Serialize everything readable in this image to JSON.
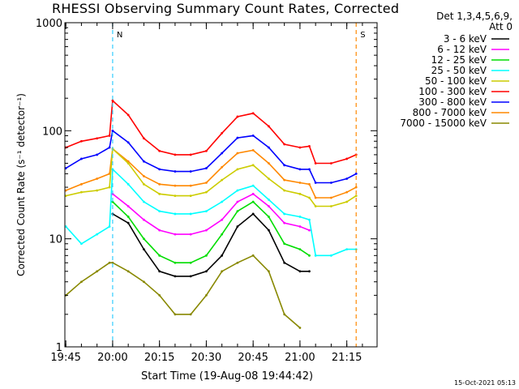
{
  "chart_data": {
    "type": "line",
    "title": "RHESSI Observing Summary Count Rates, Corrected",
    "xlabel": "Start Time (19-Aug-08 19:44:42)",
    "ylabel": "Corrected Count Rate (s⁻¹ detector⁻¹)",
    "yscale": "log",
    "ylim": [
      1,
      1000
    ],
    "xlim_minutes": [
      0,
      100
    ],
    "x_ticks": [
      "19:45",
      "20:00",
      "20:15",
      "20:30",
      "20:45",
      "21:00",
      "21:15"
    ],
    "y_ticks": [
      "1",
      "10",
      "100",
      "1000"
    ],
    "legend_header": [
      "Det 1,3,4,5,6,9,",
      "Att 0"
    ],
    "legend_position": "right",
    "markers": [
      {
        "label": "N",
        "time": "20:00",
        "color": "#33ccff"
      },
      {
        "label": "S",
        "time": "21:18",
        "color": "#ff8800"
      }
    ],
    "x": [
      "19:45",
      "19:50",
      "19:55",
      "19:59",
      "20:00",
      "20:05",
      "20:10",
      "20:15",
      "20:20",
      "20:25",
      "20:30",
      "20:35",
      "20:40",
      "20:45",
      "20:50",
      "20:55",
      "21:00",
      "21:03",
      "21:05",
      "21:10",
      "21:15",
      "21:18"
    ],
    "series": [
      {
        "name": "3 - 6 keV",
        "color": "#000000",
        "values": [
          null,
          null,
          null,
          null,
          17,
          14,
          8,
          5,
          4.5,
          4.5,
          5,
          7,
          13,
          17,
          12,
          6,
          5,
          5,
          null,
          null,
          null,
          null
        ]
      },
      {
        "name": "6 - 12 keV",
        "color": "#ff00ff",
        "values": [
          null,
          null,
          null,
          null,
          26,
          20,
          15,
          12,
          11,
          11,
          12,
          15,
          22,
          26,
          20,
          14,
          13,
          12,
          null,
          null,
          null,
          null
        ]
      },
      {
        "name": "12 - 25 keV",
        "color": "#00dd00",
        "values": [
          null,
          null,
          null,
          null,
          22,
          16,
          10,
          7,
          6,
          6,
          7,
          11,
          18,
          22,
          16,
          9,
          8,
          7,
          null,
          null,
          null,
          null
        ]
      },
      {
        "name": "25 - 50 keV",
        "color": "#00ffff",
        "values": [
          13,
          9,
          11,
          13,
          44,
          32,
          22,
          18,
          17,
          17,
          18,
          22,
          28,
          31,
          23,
          17,
          16,
          15,
          7,
          7,
          8,
          8
        ]
      },
      {
        "name": "50 - 100 keV",
        "color": "#cccc00",
        "values": [
          25,
          27,
          28,
          30,
          68,
          50,
          32,
          26,
          25,
          25,
          27,
          35,
          44,
          48,
          36,
          28,
          26,
          24,
          20,
          20,
          22,
          25
        ]
      },
      {
        "name": "100 - 300 keV",
        "color": "#ff0000",
        "values": [
          70,
          80,
          85,
          90,
          190,
          140,
          85,
          65,
          60,
          60,
          65,
          95,
          135,
          145,
          110,
          75,
          70,
          72,
          50,
          50,
          55,
          60
        ]
      },
      {
        "name": "300 - 800 keV",
        "color": "#0000ff",
        "values": [
          45,
          55,
          60,
          70,
          100,
          78,
          52,
          44,
          42,
          42,
          45,
          62,
          86,
          90,
          70,
          48,
          44,
          44,
          33,
          33,
          36,
          40
        ]
      },
      {
        "name": "800 - 7000 keV",
        "color": "#ff8800",
        "values": [
          28,
          32,
          36,
          40,
          68,
          52,
          38,
          32,
          31,
          31,
          33,
          46,
          62,
          66,
          50,
          35,
          33,
          32,
          24,
          24,
          27,
          30
        ]
      },
      {
        "name": "7000 - 15000 keV",
        "color": "#888800",
        "values": [
          3,
          4,
          5,
          6,
          6,
          5,
          4,
          3,
          2,
          2,
          3,
          5,
          6,
          7,
          5,
          2,
          1.5,
          null,
          null,
          null,
          null,
          null
        ]
      }
    ]
  },
  "footer_timestamp": "15-Oct-2021 05:13"
}
